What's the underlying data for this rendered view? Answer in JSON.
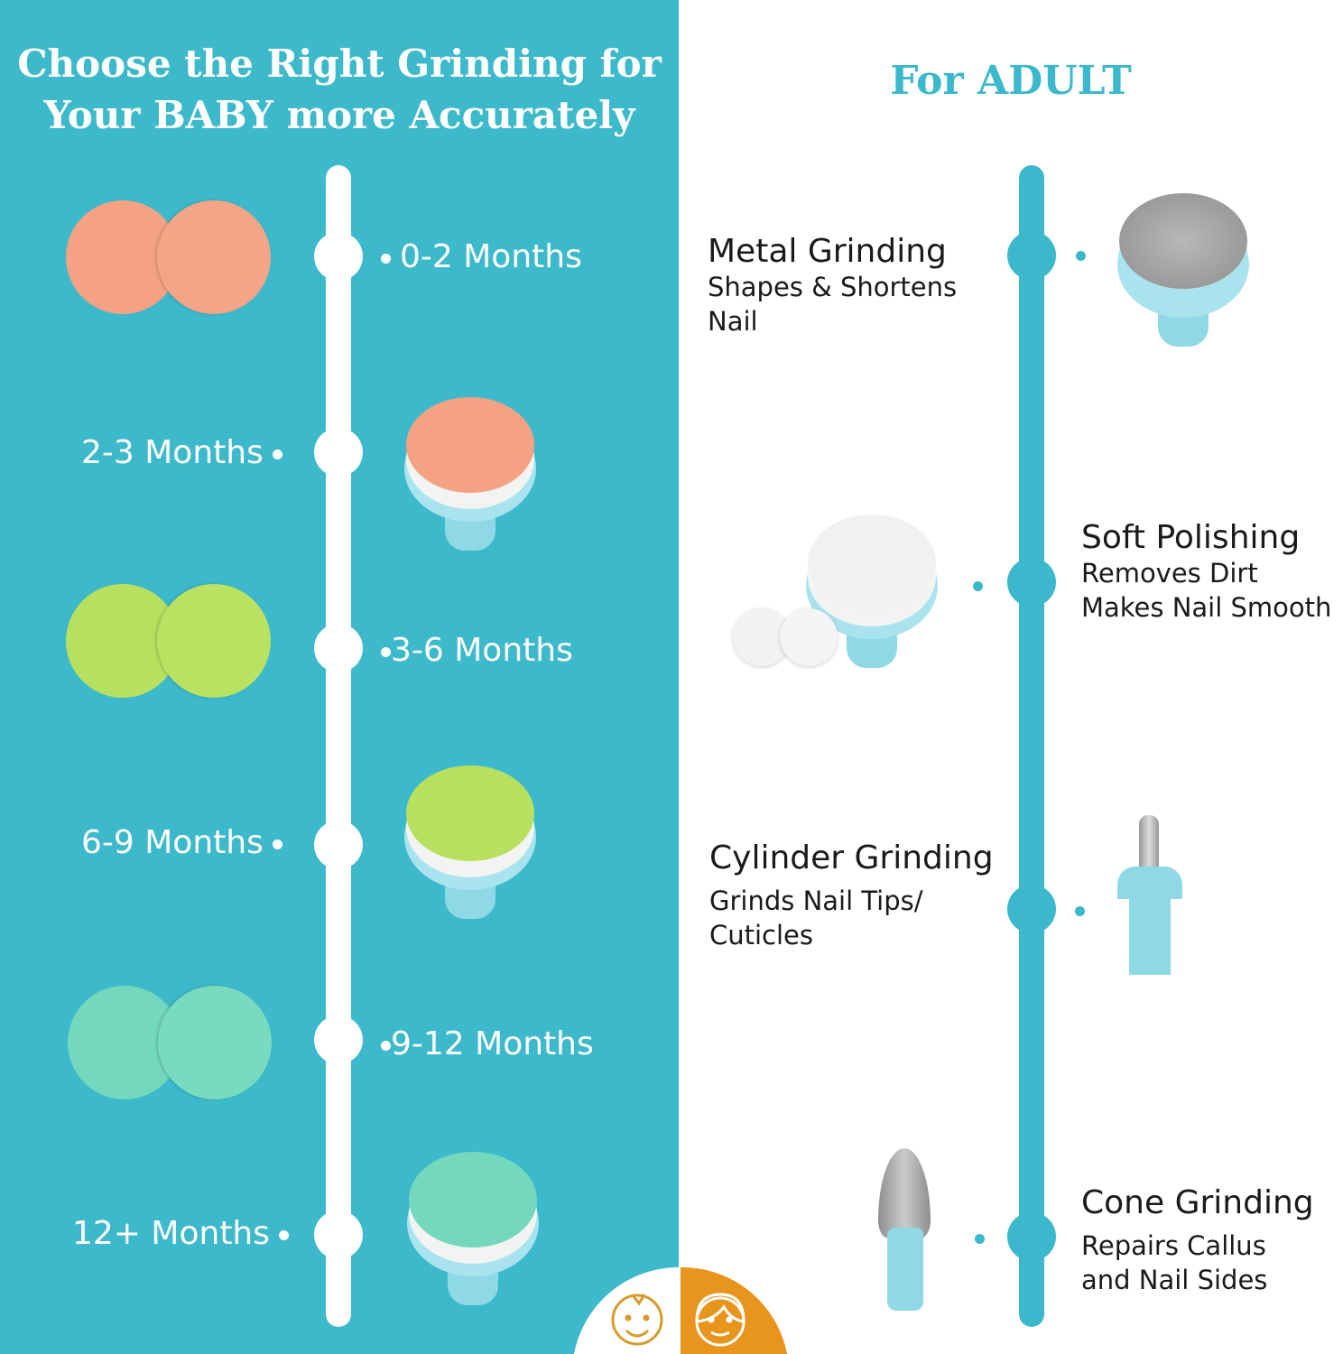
{
  "baby": {
    "title": "Choose the Right Grinding for\nYour BABY more Accurately",
    "stages": [
      {
        "label": "0-2 Months",
        "color": "#f4a283"
      },
      {
        "label": "2-3 Months",
        "color": "#f4a283"
      },
      {
        "label": "3-6 Months",
        "color": "#b7e05e"
      },
      {
        "label": "6-9 Months",
        "color": "#b7e05e"
      },
      {
        "label": "9-12 Months",
        "color": "#74d8bd"
      },
      {
        "label": "12+ Months",
        "color": "#74d8bd"
      }
    ]
  },
  "adult": {
    "title": "For ADULT",
    "items": [
      {
        "title": "Metal Grinding",
        "desc": "Shapes  &  Shortens\nNail"
      },
      {
        "title": "Soft Polishing",
        "desc": "Removes Dirt\nMakes Nail Smooth"
      },
      {
        "title": "Cylinder Grinding",
        "desc": "Grinds Nail Tips/\nCuticles"
      },
      {
        "title": "Cone Grinding",
        "desc": "Repairs Callus\nand Nail Sides"
      }
    ]
  },
  "colors": {
    "baby_teal": "#3db9cc",
    "accent_orange": "#e8951e",
    "stem_blue": "#8fd9e6"
  },
  "icons": [
    "baby-face-icon",
    "woman-face-icon"
  ]
}
